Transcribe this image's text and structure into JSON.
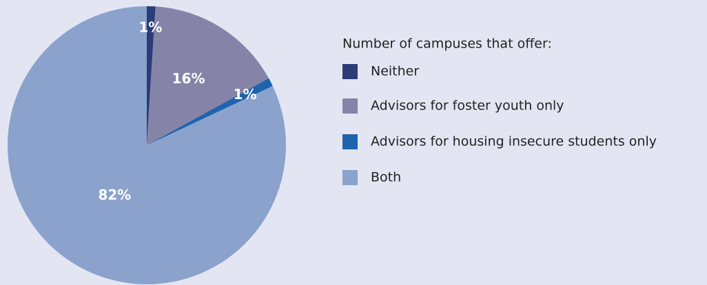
{
  "chart_data": {
    "type": "pie",
    "legend_title": "Number of campuses that offer:",
    "categories": [
      "Neither",
      "Advisors for foster youth only",
      "Advisors for housing insecure students only",
      "Both"
    ],
    "values": [
      1,
      16,
      1,
      82
    ],
    "value_labels": [
      "1%",
      "16%",
      "1%",
      "82%"
    ],
    "colors": [
      "#2b3c78",
      "#8584a8",
      "#1f63ad",
      "#8aa2cc"
    ],
    "legend": "right"
  }
}
